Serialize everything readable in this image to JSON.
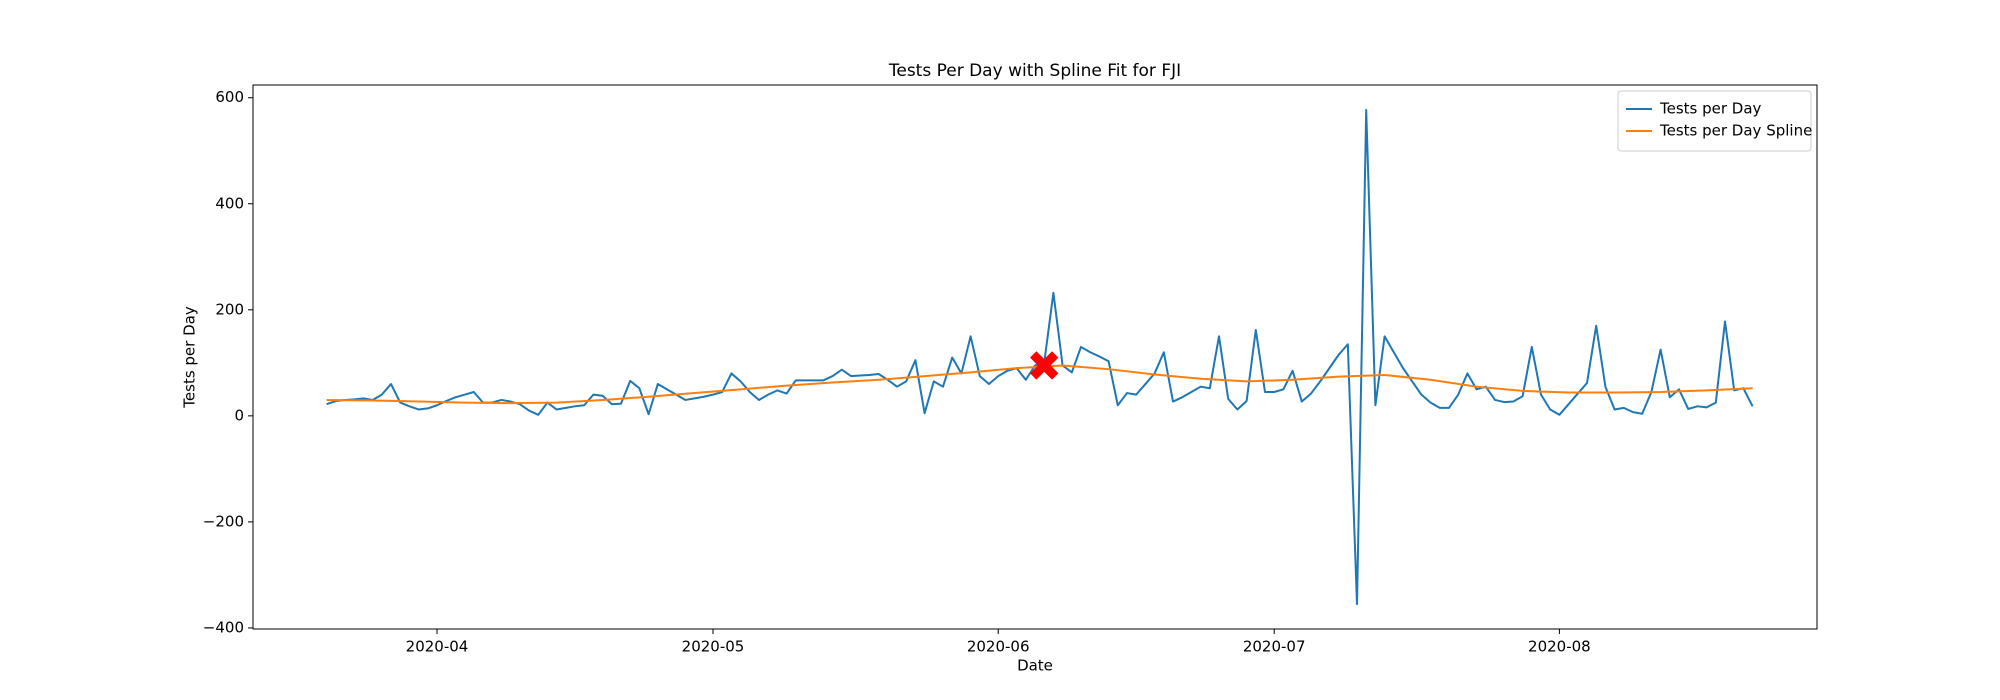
{
  "chart_data": {
    "type": "line",
    "title": "Tests Per Day with Spline Fit for FJI",
    "x_label": "Date",
    "y_label": "Tests per Day",
    "xlim": [
      "2020-03-12",
      "2020-08-29"
    ],
    "ylim": [
      -402,
      624
    ],
    "xticks": [
      "2020-04",
      "2020-05",
      "2020-06",
      "2020-07",
      "2020-08"
    ],
    "yticks": [
      {
        "value": -400,
        "label": "−400"
      },
      {
        "value": -200,
        "label": "−200"
      },
      0,
      200,
      400,
      600
    ],
    "legend": "upper right",
    "grid": false,
    "series": [
      {
        "name": "Tests per Day",
        "color": "#1f77b4",
        "x": [
          "2020-03-20",
          "2020-03-21",
          "2020-03-22",
          "2020-03-23",
          "2020-03-24",
          "2020-03-25",
          "2020-03-26",
          "2020-03-27",
          "2020-03-28",
          "2020-03-29",
          "2020-03-30",
          "2020-03-31",
          "2020-04-01",
          "2020-04-02",
          "2020-04-03",
          "2020-04-04",
          "2020-04-05",
          "2020-04-06",
          "2020-04-07",
          "2020-04-08",
          "2020-04-09",
          "2020-04-10",
          "2020-04-11",
          "2020-04-12",
          "2020-04-13",
          "2020-04-14",
          "2020-04-15",
          "2020-04-16",
          "2020-04-17",
          "2020-04-18",
          "2020-04-19",
          "2020-04-20",
          "2020-04-21",
          "2020-04-22",
          "2020-04-23",
          "2020-04-24",
          "2020-04-25",
          "2020-04-26",
          "2020-04-27",
          "2020-04-28",
          "2020-04-29",
          "2020-04-30",
          "2020-05-01",
          "2020-05-02",
          "2020-05-03",
          "2020-05-04",
          "2020-05-05",
          "2020-05-06",
          "2020-05-07",
          "2020-05-08",
          "2020-05-09",
          "2020-05-10",
          "2020-05-11",
          "2020-05-12",
          "2020-05-13",
          "2020-05-14",
          "2020-05-15",
          "2020-05-16",
          "2020-05-17",
          "2020-05-18",
          "2020-05-19",
          "2020-05-20",
          "2020-05-21",
          "2020-05-22",
          "2020-05-23",
          "2020-05-24",
          "2020-05-25",
          "2020-05-26",
          "2020-05-27",
          "2020-05-28",
          "2020-05-29",
          "2020-05-30",
          "2020-05-31",
          "2020-06-01",
          "2020-06-02",
          "2020-06-03",
          "2020-06-04",
          "2020-06-05",
          "2020-06-06",
          "2020-06-07",
          "2020-06-08",
          "2020-06-09",
          "2020-06-10",
          "2020-06-11",
          "2020-06-12",
          "2020-06-13",
          "2020-06-14",
          "2020-06-15",
          "2020-06-16",
          "2020-06-17",
          "2020-06-18",
          "2020-06-19",
          "2020-06-20",
          "2020-06-21",
          "2020-06-22",
          "2020-06-23",
          "2020-06-24",
          "2020-06-25",
          "2020-06-26",
          "2020-06-27",
          "2020-06-28",
          "2020-06-29",
          "2020-06-30",
          "2020-07-01",
          "2020-07-02",
          "2020-07-03",
          "2020-07-04",
          "2020-07-05",
          "2020-07-06",
          "2020-07-07",
          "2020-07-08",
          "2020-07-09",
          "2020-07-10",
          "2020-07-11",
          "2020-07-12",
          "2020-07-13",
          "2020-07-14",
          "2020-07-15",
          "2020-07-16",
          "2020-07-17",
          "2020-07-18",
          "2020-07-19",
          "2020-07-20",
          "2020-07-21",
          "2020-07-22",
          "2020-07-23",
          "2020-07-24",
          "2020-07-25",
          "2020-07-26",
          "2020-07-27",
          "2020-07-28",
          "2020-07-29",
          "2020-07-30",
          "2020-07-31",
          "2020-08-01",
          "2020-08-02",
          "2020-08-03",
          "2020-08-04",
          "2020-08-05",
          "2020-08-06",
          "2020-08-07",
          "2020-08-08",
          "2020-08-09",
          "2020-08-10",
          "2020-08-11",
          "2020-08-12",
          "2020-08-13",
          "2020-08-14",
          "2020-08-15",
          "2020-08-16",
          "2020-08-17",
          "2020-08-18",
          "2020-08-19",
          "2020-08-20",
          "2020-08-21",
          "2020-08-22"
        ],
        "values": [
          22,
          28,
          30,
          31,
          33,
          30,
          40,
          60,
          25,
          18,
          12,
          14,
          20,
          28,
          35,
          40,
          45,
          25,
          25,
          30,
          27,
          22,
          10,
          2,
          25,
          12,
          15,
          18,
          20,
          40,
          38,
          22,
          23,
          66,
          52,
          3,
          60,
          50,
          40,
          30,
          33,
          36,
          40,
          45,
          80,
          65,
          45,
          30,
          40,
          48,
          42,
          67,
          67,
          67,
          67,
          75,
          87,
          75,
          76,
          77,
          79,
          68,
          55,
          65,
          105,
          5,
          65,
          55,
          110,
          80,
          150,
          75,
          60,
          75,
          85,
          90,
          68,
          95,
          100,
          232,
          95,
          82,
          130,
          120,
          112,
          103,
          20,
          43,
          40,
          60,
          80,
          120,
          27,
          35,
          45,
          55,
          52,
          150,
          32,
          12,
          28,
          162,
          45,
          45,
          50,
          85,
          27,
          42,
          65,
          90,
          115,
          135,
          -355,
          577,
          20,
          150,
          120,
          90,
          65,
          40,
          25,
          15,
          15,
          40,
          80,
          50,
          55,
          30,
          26,
          27,
          37,
          130,
          40,
          12,
          2,
          22,
          42,
          62,
          170,
          55,
          12,
          15,
          7,
          4,
          45,
          125,
          35,
          50,
          13,
          18,
          16,
          25,
          178,
          48,
          52,
          18
        ]
      },
      {
        "name": "Tests per Day Spline",
        "color": "#ff7f0e",
        "x": [
          "2020-03-20",
          "2020-03-25",
          "2020-03-30",
          "2020-04-04",
          "2020-04-09",
          "2020-04-14",
          "2020-04-19",
          "2020-04-24",
          "2020-04-29",
          "2020-05-04",
          "2020-05-09",
          "2020-05-14",
          "2020-05-19",
          "2020-05-24",
          "2020-05-29",
          "2020-06-03",
          "2020-06-08",
          "2020-06-13",
          "2020-06-18",
          "2020-06-23",
          "2020-06-28",
          "2020-07-03",
          "2020-07-08",
          "2020-07-13",
          "2020-07-18",
          "2020-07-23",
          "2020-07-28",
          "2020-08-02",
          "2020-08-07",
          "2020-08-12",
          "2020-08-17",
          "2020-08-22"
        ],
        "values": [
          30,
          29,
          27,
          25,
          24,
          25,
          30,
          36,
          43,
          50,
          57,
          63,
          68,
          75,
          82,
          90,
          95,
          88,
          78,
          70,
          65,
          68,
          74,
          77,
          68,
          55,
          47,
          44,
          44,
          45,
          48,
          52
        ]
      }
    ],
    "highlight": {
      "x": "2020-06-06",
      "y": 95,
      "color": "#ff0000"
    }
  }
}
